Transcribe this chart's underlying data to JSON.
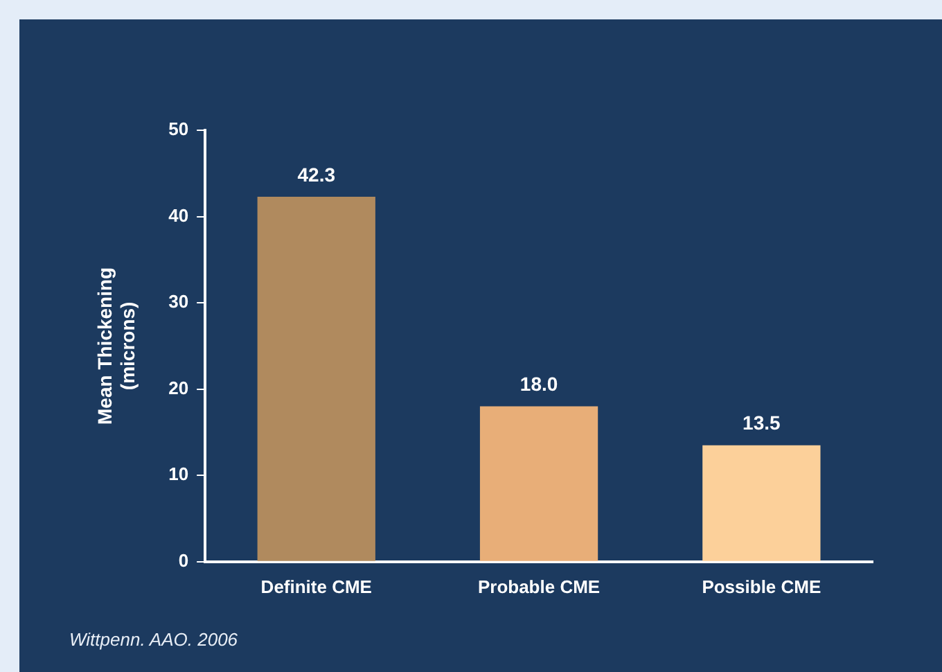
{
  "chart_data": {
    "type": "bar",
    "ylabel": "Mean Thickening (microns)",
    "categories": [
      "Definite CME",
      "Probable CME",
      "Possible CME"
    ],
    "values": [
      42.3,
      18.0,
      13.5
    ],
    "colors": [
      "#b08a5e",
      "#e8ae78",
      "#fcd09a"
    ],
    "value_labels": [
      "42.3",
      "18.0",
      "13.5"
    ],
    "ylim": [
      0,
      50
    ],
    "yticks": [
      0,
      10,
      20,
      30,
      40,
      50
    ],
    "grid": false,
    "legend": false,
    "annotations": [
      "Wittpenn. AAO. 2006"
    ]
  }
}
